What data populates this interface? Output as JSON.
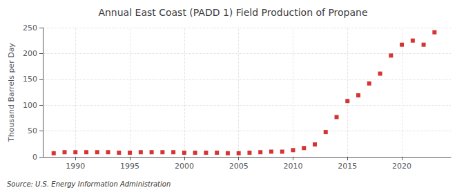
{
  "chart_data": {
    "type": "scatter",
    "title": "Annual East Coast (PADD 1) Field Production of Propane",
    "ylabel": "Thousand Barrels per Day",
    "annotations": [
      "Source: U.S. Energy Information Administration"
    ],
    "x": [
      1988,
      1989,
      1990,
      1991,
      1992,
      1993,
      1994,
      1995,
      1996,
      1997,
      1998,
      1999,
      2000,
      2001,
      2002,
      2003,
      2004,
      2005,
      2006,
      2007,
      2008,
      2009,
      2010,
      2011,
      2012,
      2013,
      2014,
      2015,
      2016,
      2017,
      2018,
      2019,
      2020,
      2021,
      2022,
      2023
    ],
    "values": [
      7,
      9,
      9,
      9,
      9,
      9,
      8,
      8,
      9,
      9,
      9,
      9,
      8,
      8,
      8,
      8,
      7,
      7,
      8,
      9,
      10,
      10,
      13,
      17,
      24,
      48,
      77,
      108,
      119,
      142,
      161,
      196,
      217,
      225,
      217,
      241
    ],
    "xlim": [
      1987.0,
      2024.5
    ],
    "xticks": [
      1990,
      1995,
      2000,
      2005,
      2010,
      2015,
      2020
    ],
    "ylim": [
      0,
      250
    ],
    "yticks": [
      0,
      50,
      100,
      150,
      200,
      250
    ],
    "color": "#cc0000",
    "marker": "square",
    "grid": true
  }
}
